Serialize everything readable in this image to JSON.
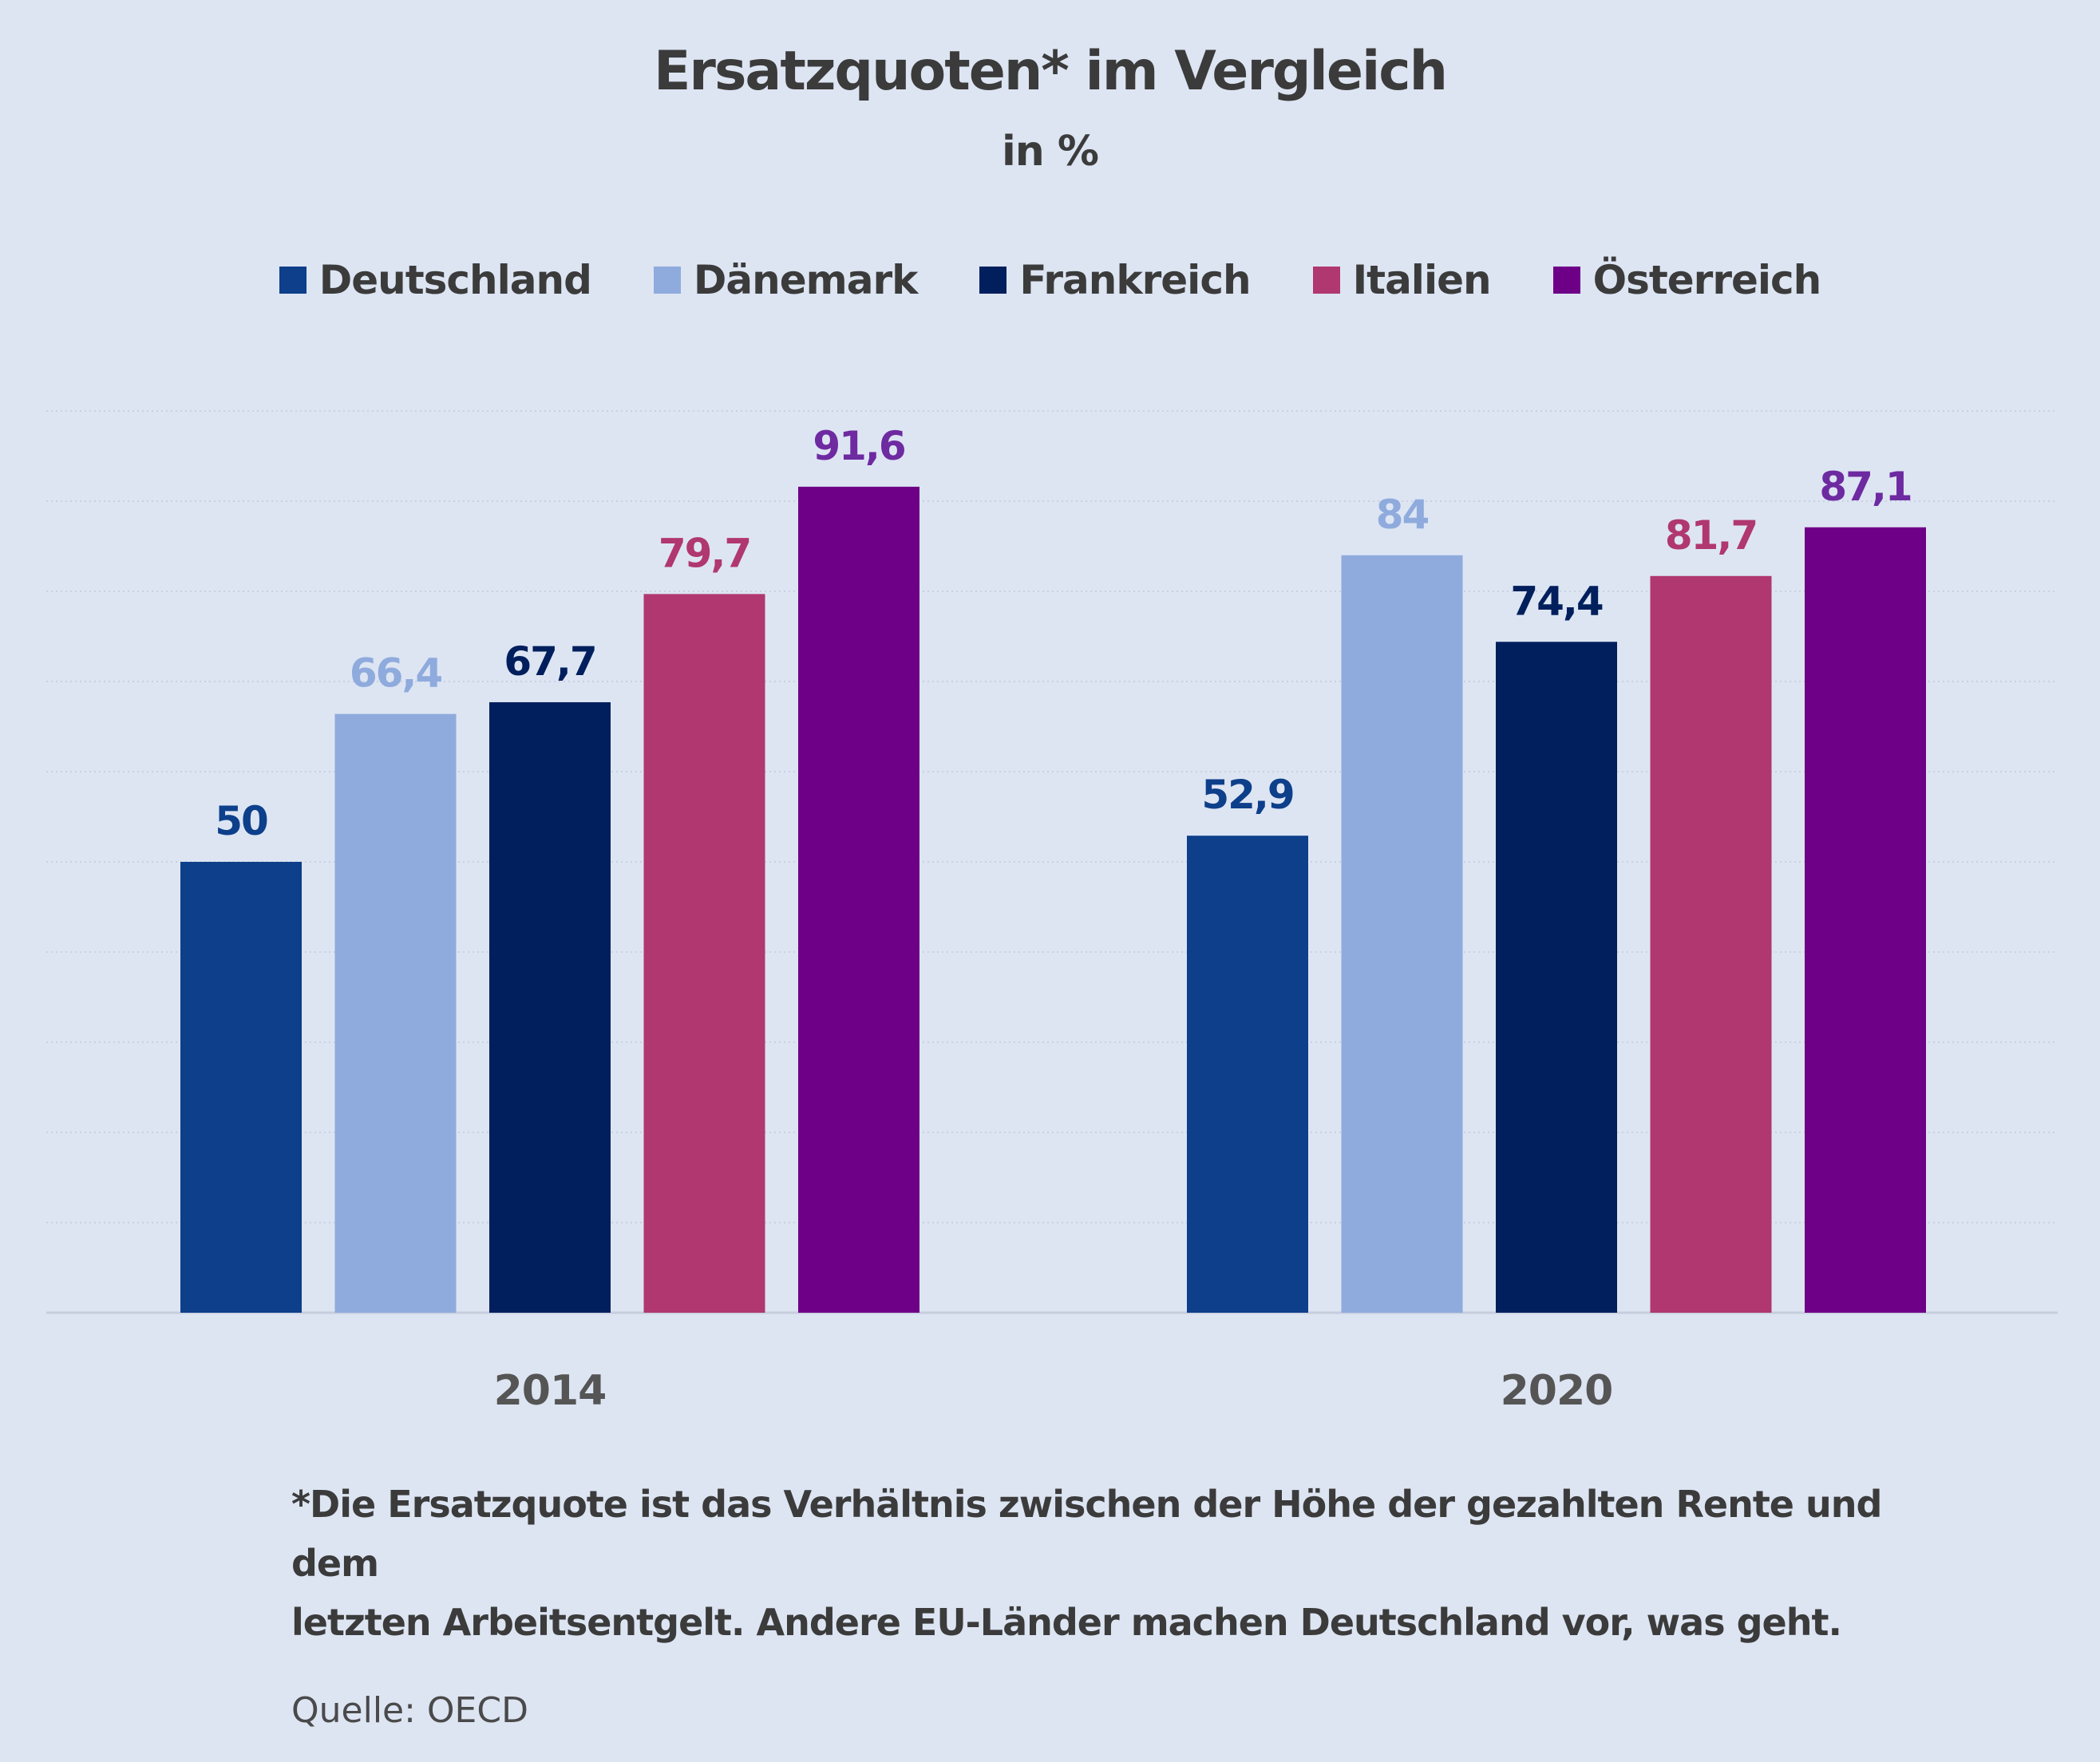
{
  "chart_data": {
    "type": "bar",
    "title": "Ersatzquoten* im Vergleich",
    "subtitle": "in %",
    "categories": [
      "2014",
      "2020"
    ],
    "series": [
      {
        "name": "Deutschland",
        "color": "#0d3f8a",
        "label_color": "#0d3f8a",
        "values": [
          50,
          52.9
        ],
        "labels": [
          "50",
          "52,9"
        ]
      },
      {
        "name": "Dänemark",
        "color": "#8fabdd",
        "label_color": "#8fabdd",
        "values": [
          66.4,
          84
        ],
        "labels": [
          "66,4",
          "84"
        ]
      },
      {
        "name": "Frankreich",
        "color": "#001f5c",
        "label_color": "#001f5c",
        "values": [
          67.7,
          74.4
        ],
        "labels": [
          "67,7",
          "74,4"
        ]
      },
      {
        "name": "Italien",
        "color": "#b0376f",
        "label_color": "#b0376f",
        "values": [
          79.7,
          81.7
        ],
        "labels": [
          "79,7",
          "81,7"
        ]
      },
      {
        "name": "Österreich",
        "color": "#6e0088",
        "label_color": "#6e2aa0",
        "values": [
          91.6,
          87.1
        ],
        "labels": [
          "91,6",
          "87,1"
        ]
      }
    ],
    "ylim": [
      0,
      100
    ],
    "grid": true,
    "legend_position": "top-center"
  },
  "footnote_lines": [
    "*Die Ersatzquote ist das Verhältnis zwischen der Höhe der gezahlten Rente und dem",
    "letzten Arbeitsentgelt. Andere EU-Länder machen Deutschland vor, was geht."
  ],
  "source": "Quelle: OECD"
}
